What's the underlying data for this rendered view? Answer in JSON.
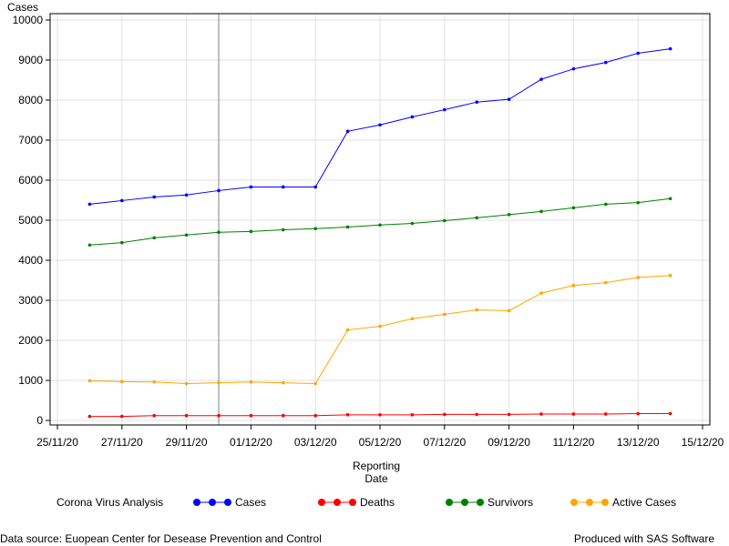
{
  "chart_data": {
    "type": "line",
    "ylabel": "Cases",
    "xlabel_lines": [
      "Reporting",
      "Date"
    ],
    "x": [
      "26/11/20",
      "27/11/20",
      "28/11/20",
      "29/11/20",
      "30/11/20",
      "01/12/20",
      "02/12/20",
      "03/12/20",
      "04/12/20",
      "05/12/20",
      "06/12/20",
      "07/12/20",
      "08/12/20",
      "09/12/20",
      "10/12/20",
      "11/12/20",
      "12/12/20",
      "13/12/20",
      "14/12/20"
    ],
    "x_ticks": [
      "25/11/20",
      "27/11/20",
      "29/11/20",
      "01/12/20",
      "03/12/20",
      "05/12/20",
      "07/12/20",
      "09/12/20",
      "11/12/20",
      "13/12/20",
      "15/12/20"
    ],
    "xlim": [
      "25/11/20",
      "15/12/20"
    ],
    "ylim": [
      0,
      10000
    ],
    "y_ticks": [
      0,
      1000,
      2000,
      3000,
      4000,
      5000,
      6000,
      7000,
      8000,
      9000,
      10000
    ],
    "grid": true,
    "reference_line_x": "30/11/20",
    "series": [
      {
        "name": "Cases",
        "color": "#0000ff",
        "values": [
          5400,
          5490,
          5580,
          5630,
          5740,
          5830,
          5830,
          5830,
          7220,
          7380,
          7580,
          7760,
          7950,
          8020,
          8520,
          8780,
          8940,
          9170,
          9280
        ]
      },
      {
        "name": "Deaths",
        "color": "#ff0000",
        "values": [
          100,
          100,
          120,
          120,
          120,
          120,
          120,
          120,
          140,
          140,
          140,
          150,
          150,
          150,
          160,
          160,
          160,
          170,
          170
        ]
      },
      {
        "name": "Survivors",
        "color": "#008000",
        "values": [
          4380,
          4440,
          4560,
          4630,
          4700,
          4720,
          4760,
          4790,
          4830,
          4880,
          4920,
          4990,
          5060,
          5140,
          5220,
          5310,
          5400,
          5440,
          5540
        ]
      },
      {
        "name": "Active Cases",
        "color": "#ffa500",
        "values": [
          990,
          970,
          960,
          920,
          940,
          960,
          940,
          920,
          2260,
          2350,
          2540,
          2650,
          2760,
          2740,
          3180,
          3370,
          3440,
          3570,
          3620
        ]
      }
    ],
    "legend_title": "Corona Virus Analysis",
    "legend_position": "bottom"
  },
  "footnotes": {
    "left": "Data source: Euopean Center for Desease Prevention and Control",
    "right": "Produced with SAS Software"
  }
}
